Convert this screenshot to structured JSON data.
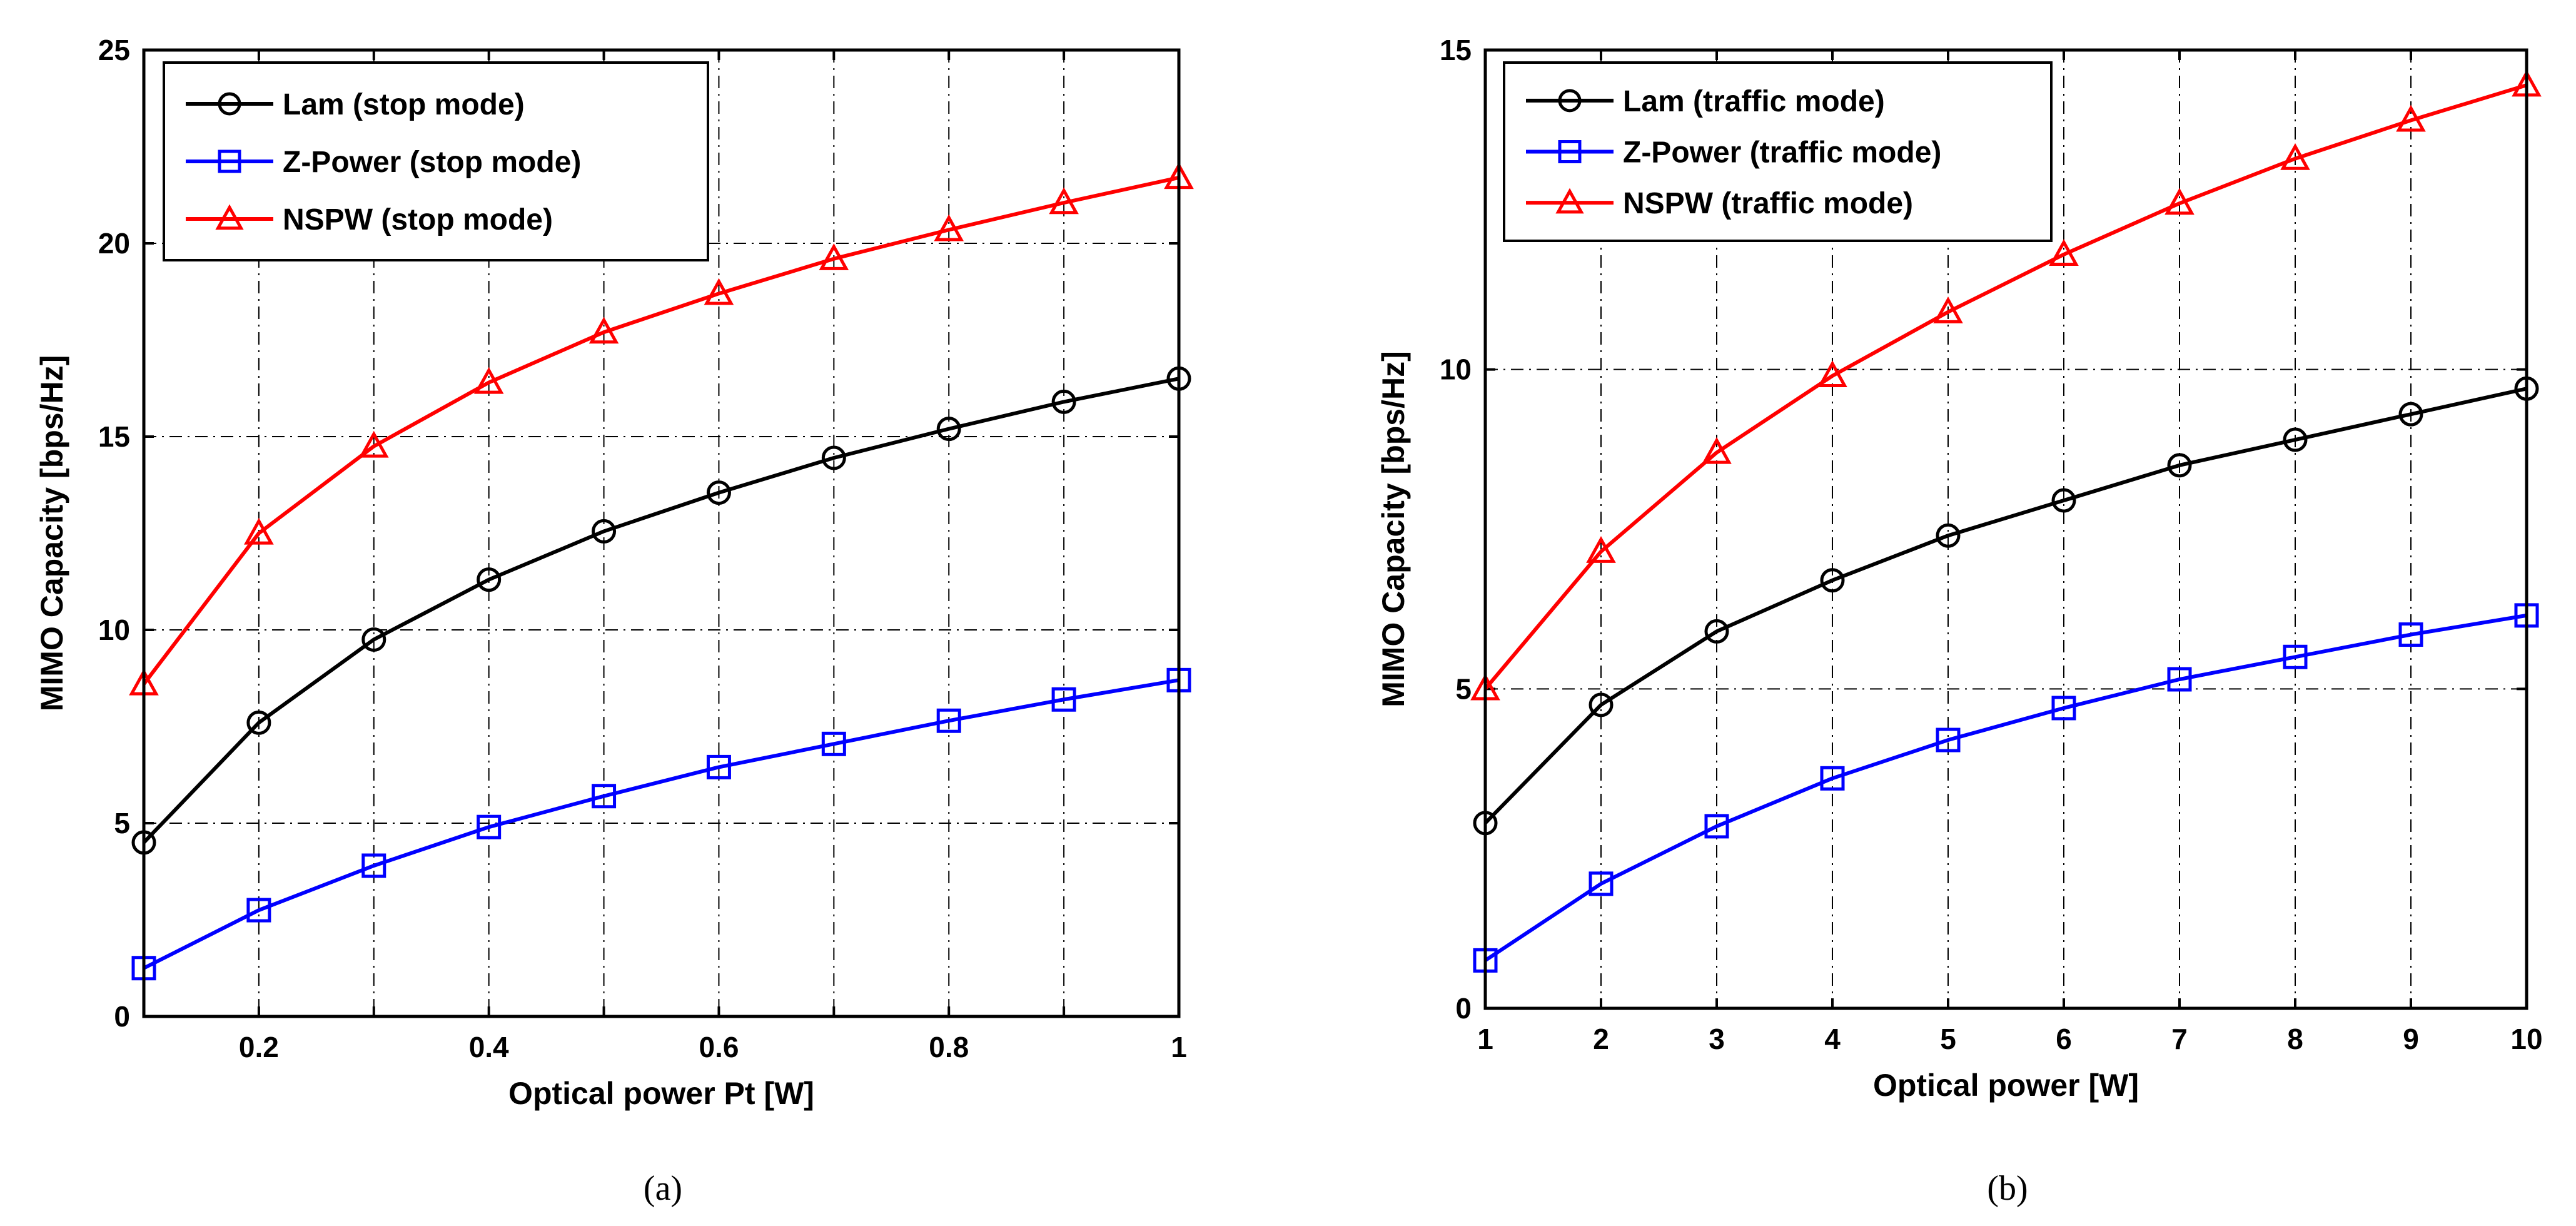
{
  "chart_data": [
    {
      "type": "line",
      "title": "",
      "caption": "(a)",
      "xlabel": "Optical power Pt [W]",
      "ylabel": "MIMO Capacity [bps/Hz]",
      "xlim": [
        0.1,
        1
      ],
      "ylim": [
        0,
        25
      ],
      "xticks": [
        0.2,
        0.4,
        0.6,
        0.8,
        1
      ],
      "xtick_labels": [
        "0.2",
        "0.4",
        "0.6",
        "0.8",
        "1"
      ],
      "xgrid": [
        0.2,
        0.3,
        0.4,
        0.5,
        0.6,
        0.7,
        0.8,
        0.9
      ],
      "yticks": [
        0,
        5,
        10,
        15,
        20,
        25
      ],
      "ytick_labels": [
        "0",
        "5",
        "10",
        "15",
        "20",
        "25"
      ],
      "grid": true,
      "legend_position": "top-left",
      "x": [
        0.1,
        0.2,
        0.3,
        0.4,
        0.5,
        0.6,
        0.7,
        0.8,
        0.9,
        1.0
      ],
      "series": [
        {
          "name": "Lam (stop mode)",
          "color": "#000000",
          "marker": "circle",
          "values": [
            4.5,
            7.6,
            9.75,
            11.3,
            12.55,
            13.55,
            14.45,
            15.2,
            15.9,
            16.5
          ]
        },
        {
          "name": "Z-Power (stop mode)",
          "color": "#0000ff",
          "marker": "square",
          "values": [
            1.25,
            2.75,
            3.9,
            4.9,
            5.7,
            6.45,
            7.05,
            7.65,
            8.2,
            8.7
          ]
        },
        {
          "name": "NSPW (stop mode)",
          "color": "#ff0000",
          "marker": "triangle",
          "values": [
            8.6,
            12.5,
            14.75,
            16.4,
            17.7,
            18.7,
            19.6,
            20.35,
            21.05,
            21.7
          ]
        }
      ]
    },
    {
      "type": "line",
      "title": "",
      "caption": "(b)",
      "xlabel": "Optical power [W]",
      "ylabel": "MIMO Capacity [bps/Hz]",
      "xlim": [
        1,
        10
      ],
      "ylim": [
        0,
        15
      ],
      "xticks": [
        1,
        2,
        3,
        4,
        5,
        6,
        7,
        8,
        9,
        10
      ],
      "xtick_labels": [
        "1",
        "2",
        "3",
        "4",
        "5",
        "6",
        "7",
        "8",
        "9",
        "10"
      ],
      "xgrid": [
        2,
        3,
        4,
        5,
        6,
        7,
        8,
        9
      ],
      "yticks": [
        0,
        5,
        10,
        15
      ],
      "ytick_labels": [
        "0",
        "5",
        "10",
        "15"
      ],
      "grid": true,
      "legend_position": "top-left",
      "x": [
        1,
        2,
        3,
        4,
        5,
        6,
        7,
        8,
        9,
        10
      ],
      "series": [
        {
          "name": "Lam (traffic mode)",
          "color": "#000000",
          "marker": "circle",
          "values": [
            2.9,
            4.75,
            5.9,
            6.7,
            7.4,
            7.95,
            8.5,
            8.9,
            9.3,
            9.7
          ]
        },
        {
          "name": "Z-Power (traffic mode)",
          "color": "#0000ff",
          "marker": "square",
          "values": [
            0.75,
            1.95,
            2.85,
            3.6,
            4.2,
            4.7,
            5.15,
            5.5,
            5.85,
            6.15
          ]
        },
        {
          "name": "NSPW (traffic mode)",
          "color": "#ff0000",
          "marker": "triangle",
          "values": [
            5.0,
            7.15,
            8.7,
            9.9,
            10.9,
            11.8,
            12.6,
            13.3,
            13.9,
            14.45
          ]
        }
      ]
    }
  ]
}
